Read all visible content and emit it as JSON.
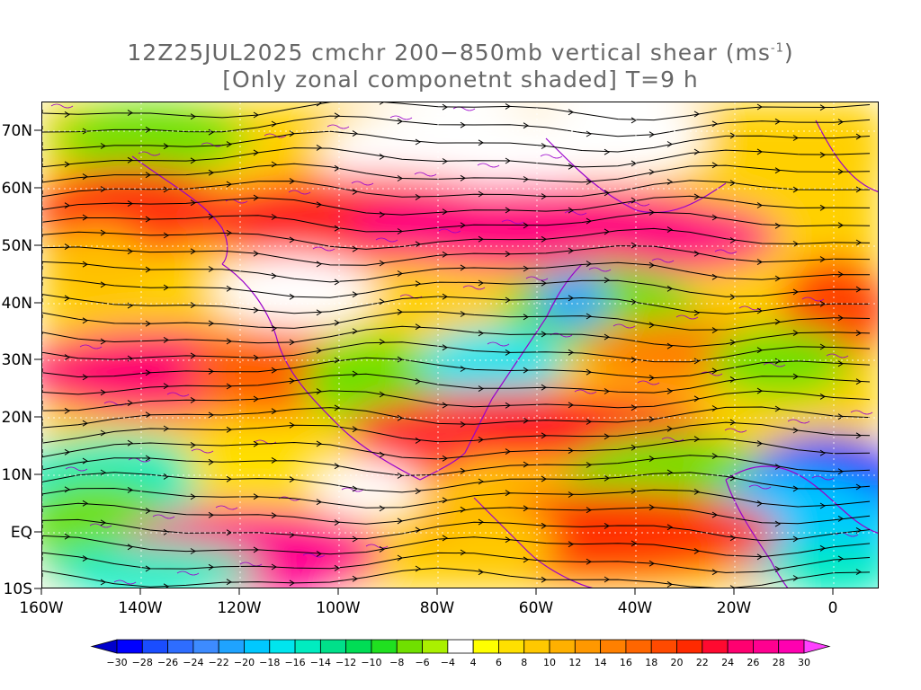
{
  "title": {
    "line1_text": "12Z25JUL2025 cmchr 200−850mb vertical shear (ms",
    "line1_unit_exp": "-1",
    "line1_close": ")",
    "line2_text": "[Only zonal componetnt shaded] T=9 h"
  },
  "axes": {
    "lon_labels": [
      "160W",
      "140W",
      "120W",
      "100W",
      "80W",
      "60W",
      "40W",
      "20W",
      "0"
    ],
    "lat_labels": [
      "70N",
      "60N",
      "50N",
      "40N",
      "30N",
      "20N",
      "10N",
      "EQ",
      "10S"
    ]
  },
  "colorbar": {
    "labels": [
      "-30",
      "-28",
      "-26",
      "-24",
      "-22",
      "-20",
      "-18",
      "-16",
      "-14",
      "-12",
      "-10",
      "-8",
      "-6",
      "-4",
      "4",
      "6",
      "8",
      "10",
      "12",
      "14",
      "16",
      "18",
      "20",
      "22",
      "24",
      "26",
      "28",
      "30"
    ],
    "colors": [
      "#0000ff",
      "#1a4dff",
      "#2e6dff",
      "#3d8bff",
      "#1fa3ff",
      "#00c8ff",
      "#00e5ee",
      "#00ecc0",
      "#00e08a",
      "#00dd55",
      "#20e020",
      "#70e000",
      "#aaf000",
      "#ffffff",
      "#ffff00",
      "#ffe000",
      "#ffc800",
      "#ffb000",
      "#ff9800",
      "#ff8000",
      "#ff6600",
      "#ff4a00",
      "#ff2a00",
      "#ff0a30",
      "#ff0070",
      "#ff0090",
      "#ff00b0"
    ],
    "under_color": "#0000cc",
    "over_color": "#ff40ff"
  },
  "legend_colors": {
    "streamline": "#000000",
    "coastline": "#9900cc",
    "grid": "#ffffff"
  }
}
